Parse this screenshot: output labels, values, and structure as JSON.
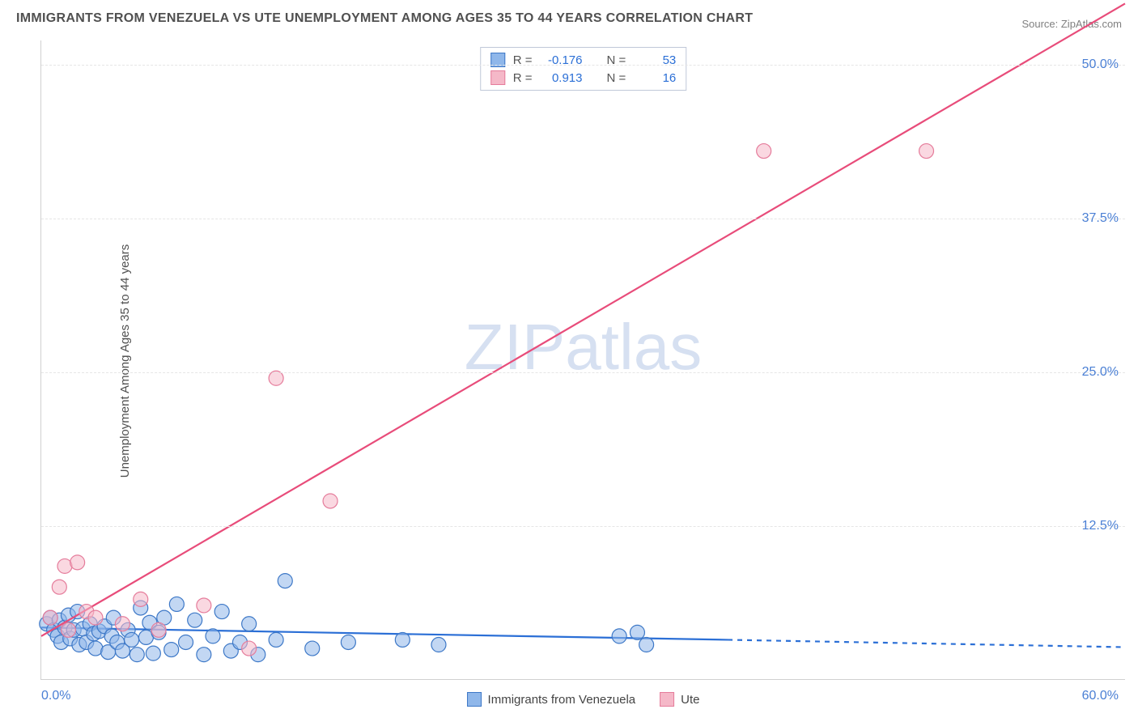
{
  "title": "IMMIGRANTS FROM VENEZUELA VS UTE UNEMPLOYMENT AMONG AGES 35 TO 44 YEARS CORRELATION CHART",
  "source": "Source: ZipAtlas.com",
  "ylabel": "Unemployment Among Ages 35 to 44 years",
  "watermark_primary": "ZIP",
  "watermark_secondary": "atlas",
  "chart": {
    "type": "scatter",
    "xlim": [
      0,
      60
    ],
    "ylim": [
      0,
      52
    ],
    "yticks": [
      12.5,
      25.0,
      37.5,
      50.0
    ],
    "ytick_labels": [
      "12.5%",
      "25.0%",
      "37.5%",
      "50.0%"
    ],
    "xlabel_min": "0.0%",
    "xlabel_max": "60.0%",
    "grid_color": "#e5e5e5",
    "background_color": "#ffffff",
    "axis_color": "#d0d0d0",
    "tick_color": "#4a7fd4",
    "marker_radius": 9,
    "marker_opacity": 0.55,
    "line_width": 2.2
  },
  "series": [
    {
      "name": "Immigrants from Venezuela",
      "fill": "#8fb7ea",
      "stroke": "#3d78c7",
      "line_color": "#2b6fd6",
      "R": "-0.176",
      "N": "53",
      "regression": {
        "x1": 0,
        "y1": 4.2,
        "x2": 38,
        "y2": 3.2,
        "dash_from_x": 38,
        "dash_to_x": 60,
        "dash_y": 2.6
      },
      "points": [
        [
          0.3,
          4.5
        ],
        [
          0.5,
          5.0
        ],
        [
          0.7,
          4.0
        ],
        [
          0.9,
          3.5
        ],
        [
          1.0,
          4.8
        ],
        [
          1.1,
          3.0
        ],
        [
          1.3,
          4.2
        ],
        [
          1.5,
          5.2
        ],
        [
          1.6,
          3.3
        ],
        [
          1.8,
          4.0
        ],
        [
          2.0,
          5.5
        ],
        [
          2.1,
          2.8
        ],
        [
          2.3,
          4.1
        ],
        [
          2.5,
          3.0
        ],
        [
          2.7,
          4.5
        ],
        [
          2.9,
          3.7
        ],
        [
          3.0,
          2.5
        ],
        [
          3.2,
          3.9
        ],
        [
          3.5,
          4.3
        ],
        [
          3.7,
          2.2
        ],
        [
          3.9,
          3.5
        ],
        [
          4.0,
          5.0
        ],
        [
          4.2,
          3.0
        ],
        [
          4.5,
          2.3
        ],
        [
          4.8,
          4.0
        ],
        [
          5.0,
          3.2
        ],
        [
          5.3,
          2.0
        ],
        [
          5.5,
          5.8
        ],
        [
          5.8,
          3.4
        ],
        [
          6.0,
          4.6
        ],
        [
          6.2,
          2.1
        ],
        [
          6.5,
          3.8
        ],
        [
          6.8,
          5.0
        ],
        [
          7.2,
          2.4
        ],
        [
          7.5,
          6.1
        ],
        [
          8.0,
          3.0
        ],
        [
          8.5,
          4.8
        ],
        [
          9.0,
          2.0
        ],
        [
          9.5,
          3.5
        ],
        [
          10.0,
          5.5
        ],
        [
          10.5,
          2.3
        ],
        [
          11.0,
          3.0
        ],
        [
          11.5,
          4.5
        ],
        [
          12.0,
          2.0
        ],
        [
          13.0,
          3.2
        ],
        [
          13.5,
          8.0
        ],
        [
          15.0,
          2.5
        ],
        [
          17.0,
          3.0
        ],
        [
          20.0,
          3.2
        ],
        [
          22.0,
          2.8
        ],
        [
          32.0,
          3.5
        ],
        [
          33.0,
          3.8
        ],
        [
          33.5,
          2.8
        ]
      ]
    },
    {
      "name": "Ute",
      "fill": "#f5b8c8",
      "stroke": "#e57c9b",
      "line_color": "#e84c7a",
      "R": "0.913",
      "N": "16",
      "regression": {
        "x1": 0,
        "y1": 3.5,
        "x2": 60,
        "y2": 55.0
      },
      "points": [
        [
          0.5,
          5.0
        ],
        [
          1.0,
          7.5
        ],
        [
          1.3,
          9.2
        ],
        [
          1.5,
          4.0
        ],
        [
          2.0,
          9.5
        ],
        [
          2.5,
          5.5
        ],
        [
          3.0,
          5.0
        ],
        [
          4.5,
          4.5
        ],
        [
          5.5,
          6.5
        ],
        [
          6.5,
          4.0
        ],
        [
          9.0,
          6.0
        ],
        [
          11.5,
          2.5
        ],
        [
          13.0,
          24.5
        ],
        [
          16.0,
          14.5
        ],
        [
          40.0,
          43.0
        ],
        [
          49.0,
          43.0
        ]
      ]
    }
  ],
  "legend": {
    "box_border": "#c0c8d8",
    "label_R": "R =",
    "label_N": "N ="
  }
}
